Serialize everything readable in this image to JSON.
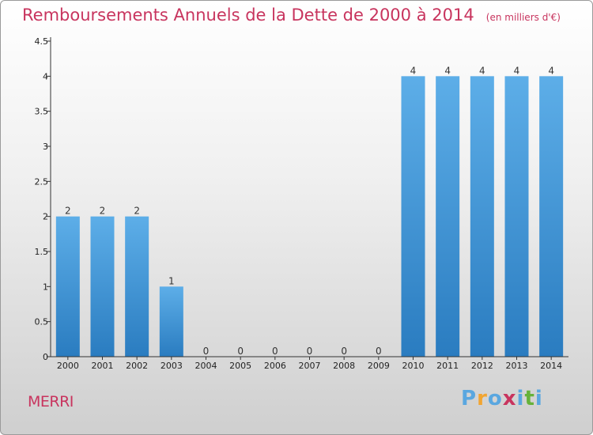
{
  "header": {
    "title": "Remboursements Annuels de la Dette de 2000 à 2014",
    "subtitle": "(en milliers d'€)"
  },
  "footer": {
    "commune": "MERRI",
    "logo_text": "Proxiti"
  },
  "colors": {
    "title": "#c8345e",
    "bar_light": "#5daee8",
    "bar_dark": "#2a7cc0",
    "axis": "#333333",
    "logo": [
      "#5aa7e0",
      "#f2a531",
      "#5aa7e0",
      "#c8345e",
      "#5aa7e0",
      "#66b23a",
      "#5aa7e0"
    ]
  },
  "chart_data": {
    "type": "bar",
    "title": "Remboursements Annuels de la Dette de 2000 à 2014",
    "xlabel": "",
    "ylabel": "",
    "categories": [
      "2000",
      "2001",
      "2002",
      "2003",
      "2004",
      "2005",
      "2006",
      "2007",
      "2008",
      "2009",
      "2010",
      "2011",
      "2012",
      "2013",
      "2014"
    ],
    "values": [
      2,
      2,
      2,
      1,
      0,
      0,
      0,
      0,
      0,
      0,
      4,
      4,
      4,
      4,
      4
    ],
    "data_labels": [
      "2",
      "2",
      "2",
      "1",
      "0",
      "0",
      "0",
      "0",
      "0",
      "0",
      "4",
      "4",
      "4",
      "4",
      "4"
    ],
    "ylim": [
      0,
      4.5
    ],
    "yticks": [
      0,
      0.5,
      1,
      1.5,
      2,
      2.5,
      3,
      3.5,
      4,
      4.5
    ],
    "ytick_labels": [
      "0",
      "0.5",
      "1",
      "1.5",
      "2",
      "2.5",
      "3",
      "3.5",
      "4",
      "4.5"
    ],
    "grid": false,
    "legend": "none"
  }
}
